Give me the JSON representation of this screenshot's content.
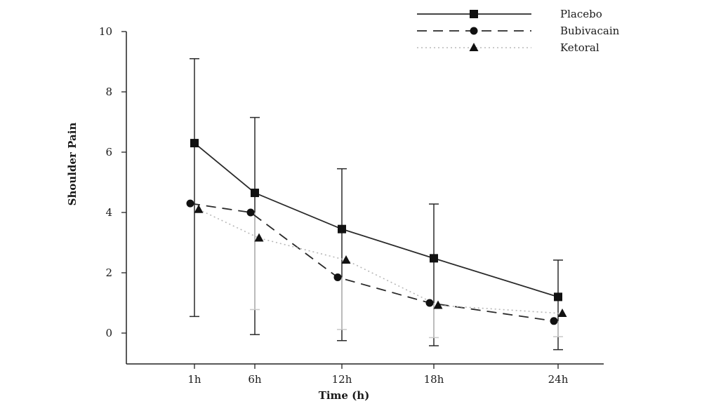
{
  "chart_data": {
    "type": "line",
    "title": "",
    "xlabel": "Time (h)",
    "ylabel": "Shoulder Pain",
    "categories": [
      "1h",
      "6h",
      "12h",
      "18h",
      "24h"
    ],
    "ylim": [
      -1,
      10
    ],
    "yticks": [
      0,
      2,
      4,
      6,
      8,
      10
    ],
    "grid": false,
    "legend_position": "top-right",
    "series": [
      {
        "name": "Placebo",
        "marker": "square",
        "line_style": "solid",
        "color": "#222222",
        "values": [
          6.3,
          4.65,
          3.45,
          2.48,
          1.2
        ],
        "error_low": [
          0.55,
          -0.05,
          -0.25,
          -0.42,
          -0.55
        ],
        "error_high": [
          9.1,
          7.15,
          5.45,
          4.28,
          2.42
        ]
      },
      {
        "name": "Bubivacain",
        "marker": "circle",
        "line_style": "dashed",
        "color": "#222222",
        "values": [
          4.3,
          4.0,
          1.85,
          1.0,
          0.4
        ],
        "error_low": [
          null,
          0.78,
          0.12,
          -0.15,
          -0.12
        ],
        "error_high": [
          null,
          null,
          null,
          null,
          null
        ]
      },
      {
        "name": "Ketoral",
        "marker": "triangle",
        "line_style": "dotted",
        "color": "#222222",
        "values": [
          4.1,
          3.15,
          2.42,
          0.92,
          0.65
        ],
        "error_low": [
          null,
          null,
          null,
          null,
          null
        ],
        "error_high": [
          null,
          null,
          null,
          null,
          null
        ]
      }
    ]
  }
}
